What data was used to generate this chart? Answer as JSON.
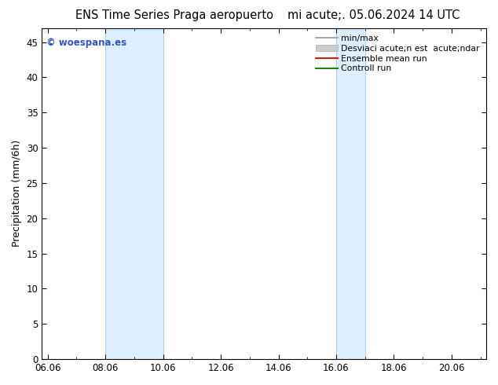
{
  "title_left": "ENS Time Series Praga aeropuerto",
  "title_right": "mi acute;. 05.06.2024 14 UTC",
  "ylabel": "Precipitation (mm/6h)",
  "ylim": [
    0,
    47
  ],
  "yticks": [
    0,
    5,
    10,
    15,
    20,
    25,
    30,
    35,
    40,
    45
  ],
  "xtick_labels": [
    "06.06",
    "08.06",
    "10.06",
    "12.06",
    "14.06",
    "16.06",
    "18.06",
    "20.06"
  ],
  "xtick_positions": [
    0,
    2,
    4,
    6,
    8,
    10,
    12,
    14
  ],
  "xlim": [
    -0.2,
    15.2
  ],
  "shade_bands": [
    {
      "xmin": 2.0,
      "xmax": 4.0
    },
    {
      "xmin": 10.0,
      "xmax": 11.0
    }
  ],
  "shade_color": "#ddeeff",
  "shade_edge_color": "#b0ccee",
  "background_color": "#ffffff",
  "watermark_text": "© woespana.es",
  "watermark_color": "#3355bb",
  "legend_labels": [
    "min/max",
    "Desviaci acute;n est  acute;ndar",
    "Ensemble mean run",
    "Controll run"
  ],
  "legend_colors": [
    "#999999",
    "#cccccc",
    "#cc2200",
    "#228800"
  ],
  "title_fontsize": 10.5,
  "axis_label_fontsize": 9,
  "tick_fontsize": 8.5,
  "legend_fontsize": 7.8,
  "watermark_fontsize": 8.5
}
